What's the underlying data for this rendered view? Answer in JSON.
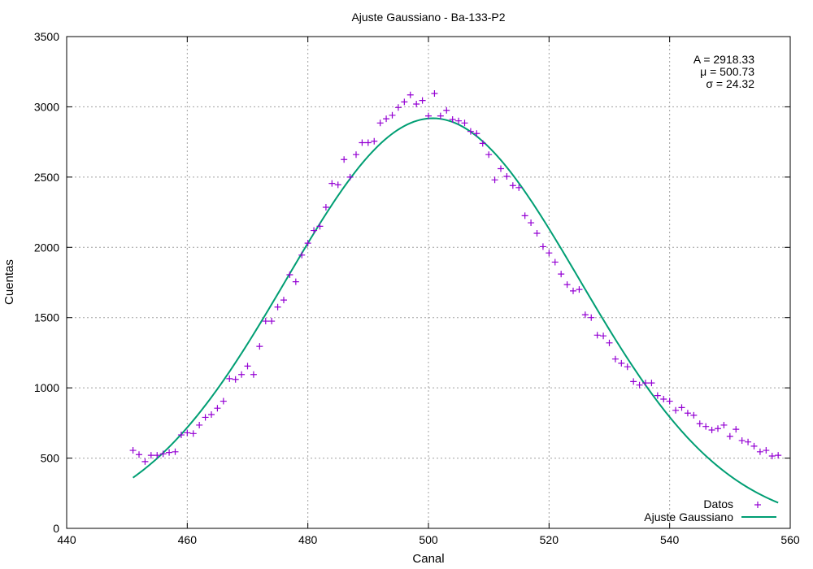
{
  "chart_data": {
    "type": "scatter",
    "title": "Ajuste Gaussiano - Ba-133-P2",
    "xlabel": "Canal",
    "ylabel": "Cuentas",
    "xlim": [
      440,
      560
    ],
    "ylim": [
      0,
      3500
    ],
    "xticks": [
      440,
      460,
      480,
      500,
      520,
      540,
      560
    ],
    "yticks": [
      0,
      500,
      1000,
      1500,
      2000,
      2500,
      3000,
      3500
    ],
    "grid": true,
    "legend_position": "bottom-right",
    "annotations": [
      "A = 2918.33",
      "μ = 500.73",
      "σ = 24.32"
    ],
    "fit_params": {
      "A": 2918.33,
      "mu": 500.73,
      "sigma": 24.32,
      "baseline": 0
    },
    "fit_range": [
      451,
      558
    ],
    "colors": {
      "data": "#9400d3",
      "fit": "#009e73",
      "grid": "#a0a0a0"
    },
    "series": [
      {
        "name": "Datos",
        "marker": "plus",
        "x": [
          451,
          452,
          453,
          454,
          455,
          456,
          457,
          458,
          459,
          460,
          461,
          462,
          463,
          464,
          465,
          466,
          467,
          468,
          469,
          470,
          471,
          472,
          473,
          474,
          475,
          476,
          477,
          478,
          479,
          480,
          481,
          482,
          483,
          484,
          485,
          486,
          487,
          488,
          489,
          490,
          491,
          492,
          493,
          494,
          495,
          496,
          497,
          498,
          499,
          500,
          501,
          502,
          503,
          504,
          505,
          506,
          507,
          508,
          509,
          510,
          511,
          512,
          513,
          514,
          515,
          516,
          517,
          518,
          519,
          520,
          521,
          522,
          523,
          524,
          525,
          526,
          527,
          528,
          529,
          530,
          531,
          532,
          533,
          534,
          535,
          536,
          537,
          538,
          539,
          540,
          541,
          542,
          543,
          544,
          545,
          546,
          547,
          548,
          549,
          550,
          551,
          552,
          553,
          554,
          555,
          556,
          557,
          558
        ],
        "y": [
          555,
          525,
          475,
          520,
          520,
          530,
          540,
          545,
          665,
          680,
          675,
          735,
          790,
          810,
          855,
          905,
          1065,
          1060,
          1095,
          1155,
          1095,
          1295,
          1475,
          1475,
          1575,
          1625,
          1805,
          1755,
          1945,
          2030,
          2120,
          2150,
          2285,
          2455,
          2445,
          2625,
          2500,
          2660,
          2745,
          2745,
          2755,
          2885,
          2915,
          2940,
          2995,
          3035,
          3085,
          3020,
          3045,
          2935,
          3095,
          2935,
          2975,
          2910,
          2900,
          2885,
          2825,
          2810,
          2740,
          2660,
          2480,
          2560,
          2505,
          2440,
          2425,
          2225,
          2175,
          2100,
          2005,
          1960,
          1895,
          1810,
          1735,
          1690,
          1700,
          1520,
          1500,
          1375,
          1370,
          1320,
          1205,
          1175,
          1150,
          1045,
          1020,
          1035,
          1035,
          945,
          920,
          905,
          840,
          860,
          820,
          805,
          745,
          725,
          700,
          710,
          735,
          655,
          705,
          625,
          615,
          585,
          545,
          555,
          515,
          520
        ]
      },
      {
        "name": "Ajuste Gaussiano",
        "type": "line",
        "function": "gaussian"
      }
    ]
  }
}
